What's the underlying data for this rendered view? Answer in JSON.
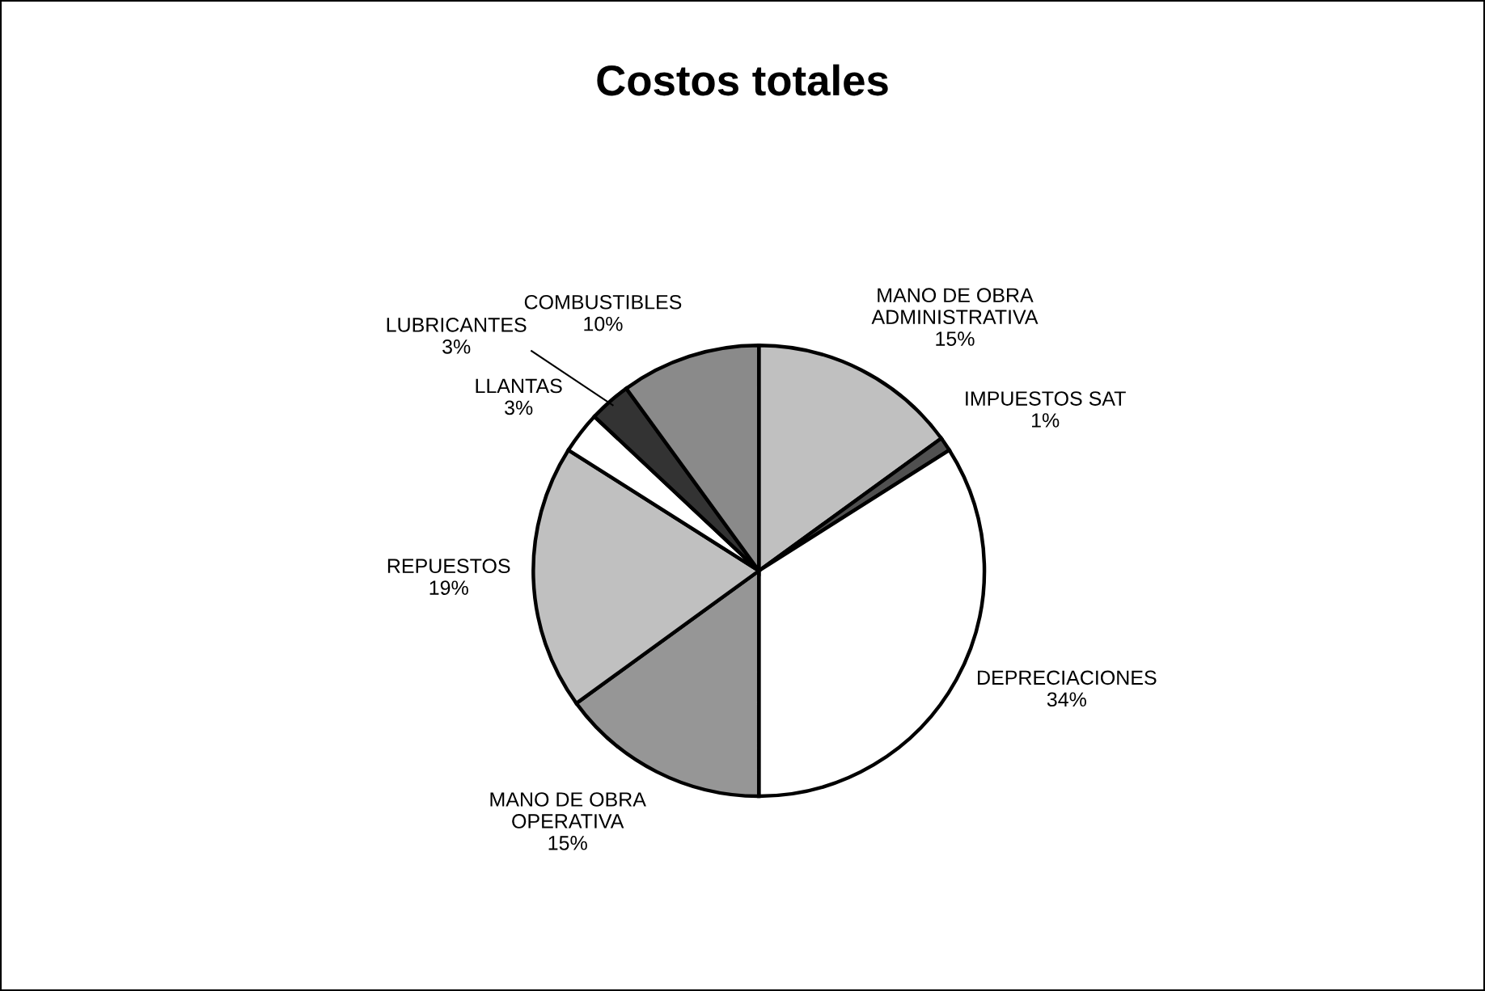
{
  "chart_data": {
    "type": "pie",
    "title": "Costos totales",
    "categories": [
      "MANO DE OBRA\nADMINISTRATIVA",
      "IMPUESTOS SAT",
      "DEPRECIACIONES",
      "MANO DE OBRA\nOPERATIVA",
      "REPUESTOS",
      "LLANTAS",
      "LUBRICANTES",
      "COMBUSTIBLES"
    ],
    "values": [
      15,
      1,
      34,
      15,
      19,
      3,
      3,
      10
    ],
    "value_labels": [
      "15%",
      "1%",
      "34%",
      "15%",
      "19%",
      "3%",
      "3%",
      "10%"
    ],
    "colors": [
      "#c0c0c0",
      "#505050",
      "#ffffff",
      "#969696",
      "#c0c0c0",
      "#ffffff",
      "#333333",
      "#8a8a8a"
    ],
    "legend": false
  }
}
